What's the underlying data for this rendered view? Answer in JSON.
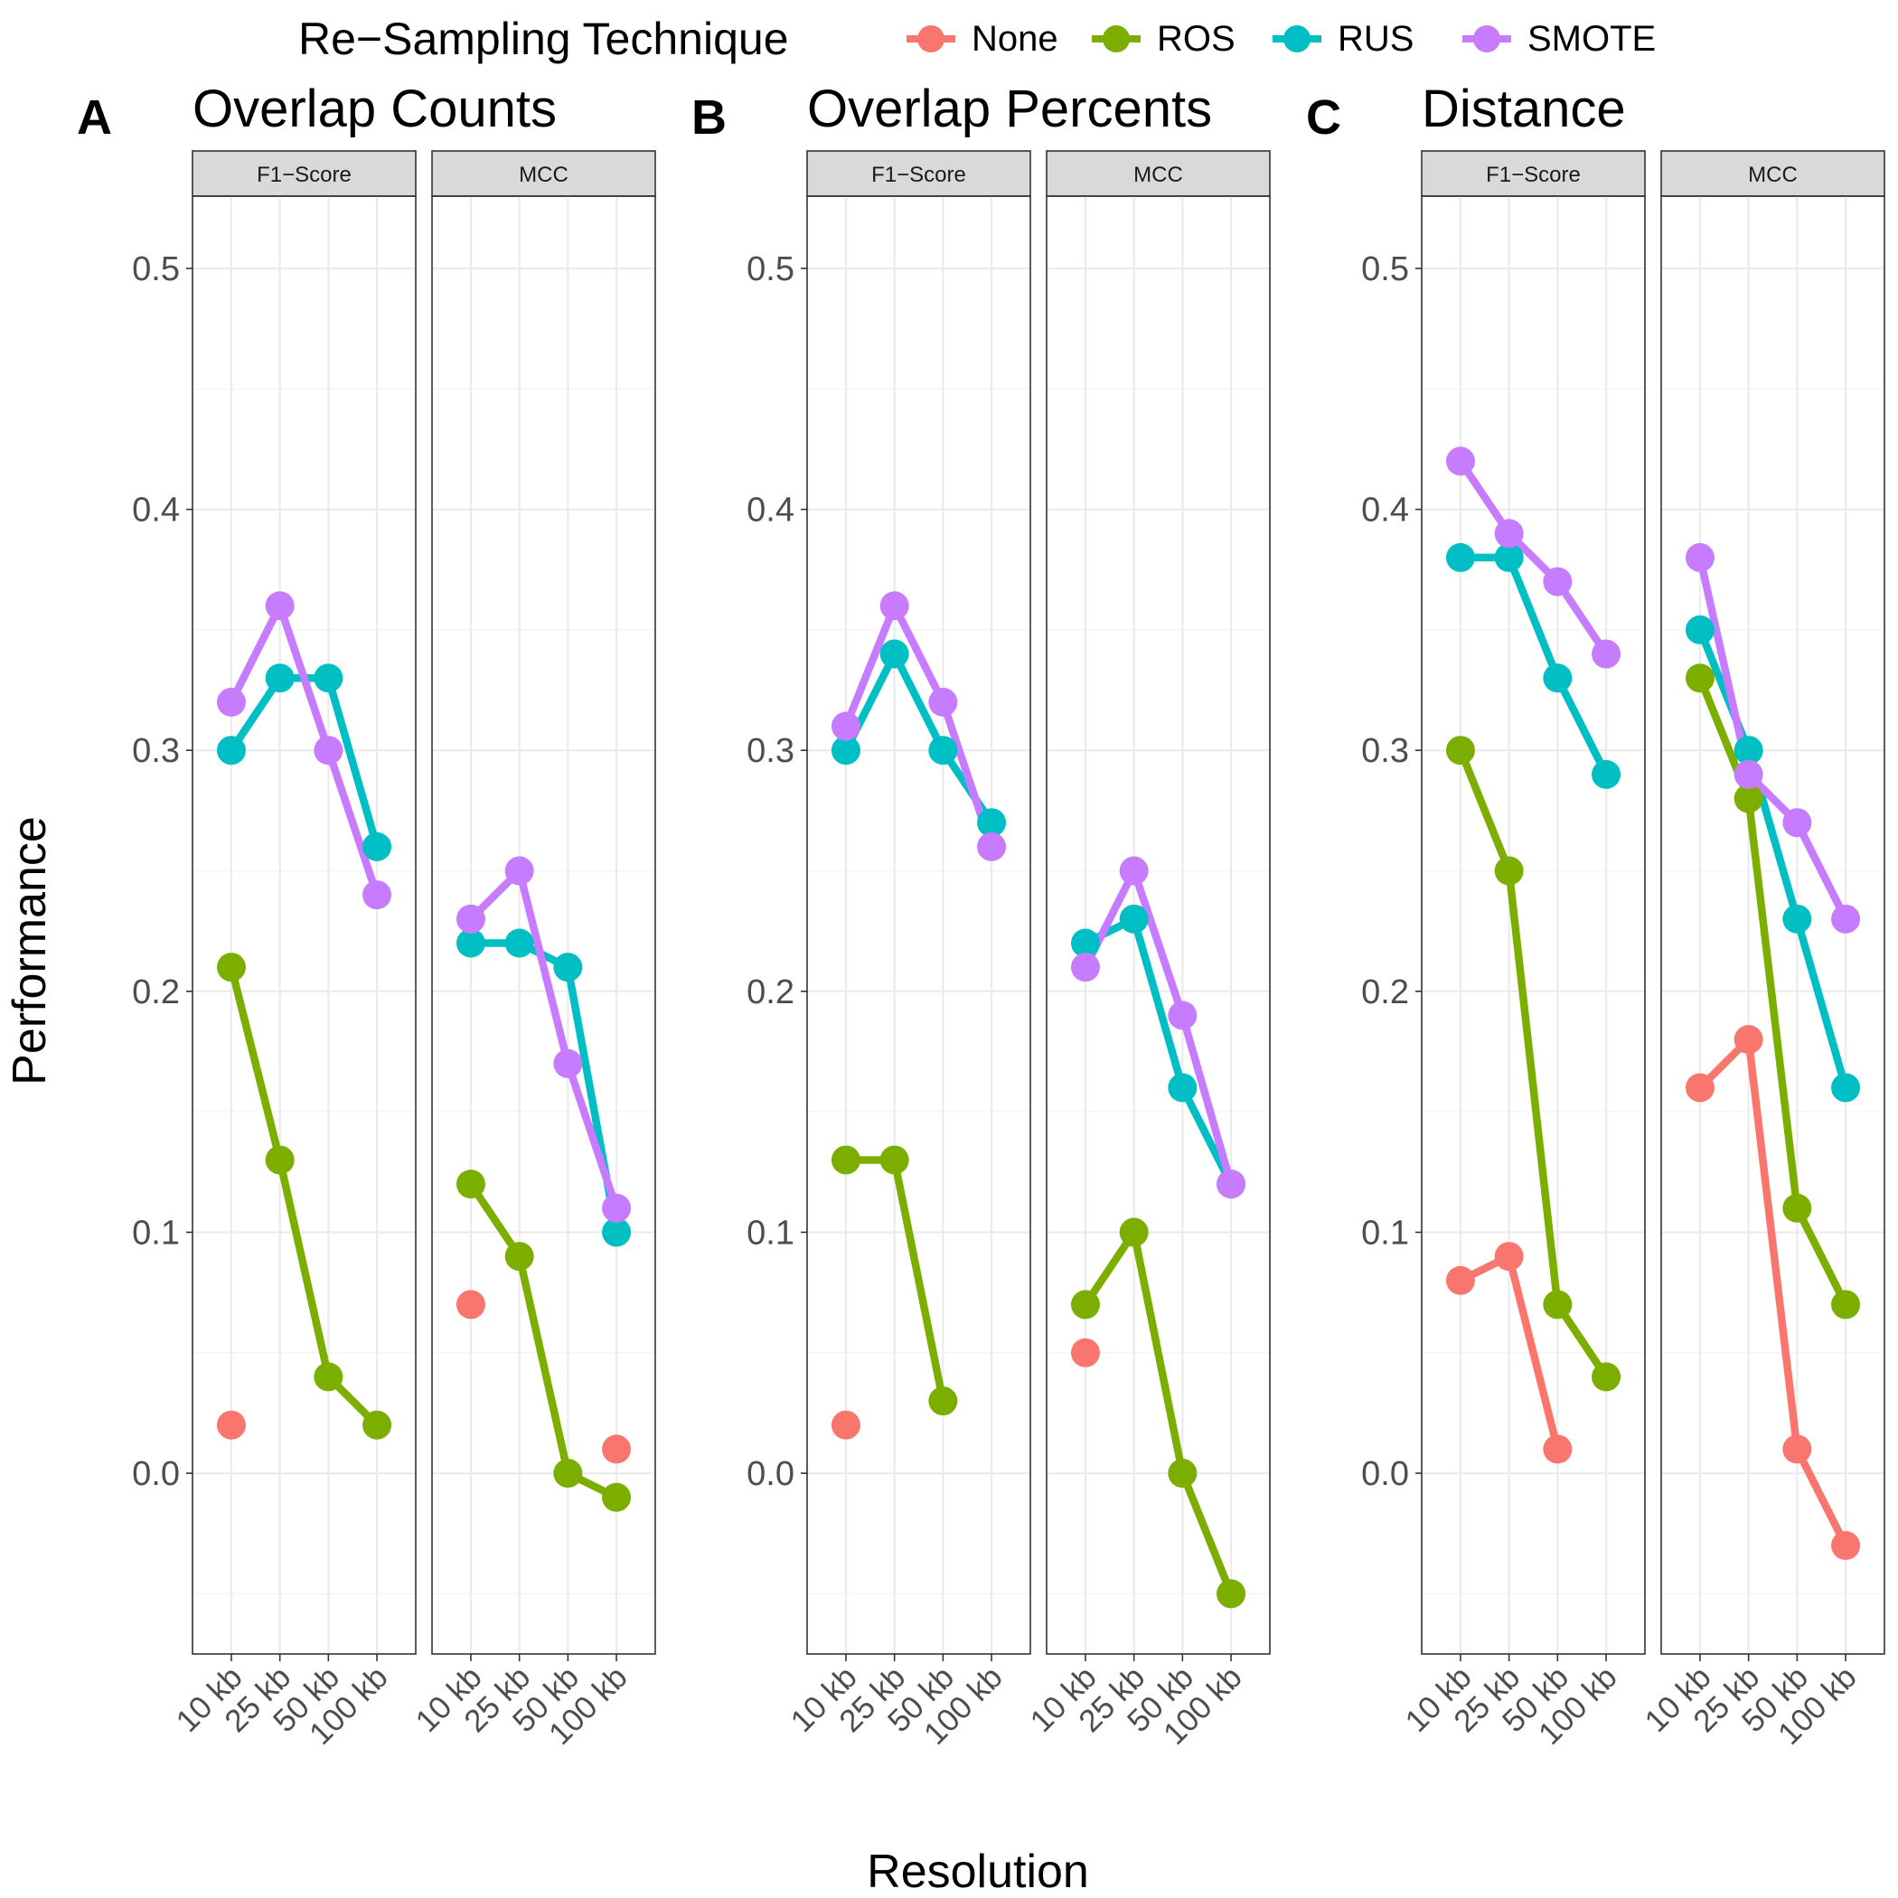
{
  "legend": {
    "title": "Re−Sampling Technique",
    "entries": [
      {
        "name": "None",
        "color": "#F8766D"
      },
      {
        "name": "ROS",
        "color": "#7CAE00"
      },
      {
        "name": "RUS",
        "color": "#00BFC4"
      },
      {
        "name": "SMOTE",
        "color": "#C77CFF"
      }
    ]
  },
  "axes": {
    "xlabel": "Resolution",
    "ylabel": "Performance",
    "x_ticks": [
      "10 kb",
      "25 kb",
      "50 kb",
      "100 kb"
    ],
    "y_ticks": [
      "0.0",
      "0.1",
      "0.2",
      "0.3",
      "0.4",
      "0.5"
    ]
  },
  "chart_data": {
    "type": "line",
    "layout": "faceted",
    "xlabel": "Resolution",
    "ylabel": "Performance",
    "x": [
      "10 kb",
      "25 kb",
      "50 kb",
      "100 kb"
    ],
    "ylim": [
      -0.075,
      0.53
    ],
    "grid": true,
    "legend_position": "top",
    "panels": [
      {
        "letter": "A",
        "title": "Overlap Counts",
        "facets": [
          {
            "label": "F1−Score",
            "series": [
              {
                "name": "None",
                "values": [
                  0.02,
                  null,
                  null,
                  null
                ]
              },
              {
                "name": "ROS",
                "values": [
                  0.21,
                  0.13,
                  0.04,
                  0.02
                ]
              },
              {
                "name": "RUS",
                "values": [
                  0.3,
                  0.33,
                  0.33,
                  0.26
                ]
              },
              {
                "name": "SMOTE",
                "values": [
                  0.32,
                  0.36,
                  0.3,
                  0.24
                ]
              }
            ]
          },
          {
            "label": "MCC",
            "series": [
              {
                "name": "None",
                "values": [
                  0.07,
                  null,
                  null,
                  0.01
                ]
              },
              {
                "name": "ROS",
                "values": [
                  0.12,
                  0.09,
                  0.0,
                  -0.01
                ]
              },
              {
                "name": "RUS",
                "values": [
                  0.22,
                  0.22,
                  0.21,
                  0.1
                ]
              },
              {
                "name": "SMOTE",
                "values": [
                  0.23,
                  0.25,
                  0.17,
                  0.11
                ]
              }
            ]
          }
        ]
      },
      {
        "letter": "B",
        "title": "Overlap Percents",
        "facets": [
          {
            "label": "F1−Score",
            "series": [
              {
                "name": "None",
                "values": [
                  0.02,
                  null,
                  null,
                  null
                ]
              },
              {
                "name": "ROS",
                "values": [
                  0.13,
                  0.13,
                  0.03,
                  null
                ]
              },
              {
                "name": "RUS",
                "values": [
                  0.3,
                  0.34,
                  0.3,
                  0.27
                ]
              },
              {
                "name": "SMOTE",
                "values": [
                  0.31,
                  0.36,
                  0.32,
                  0.26
                ]
              }
            ]
          },
          {
            "label": "MCC",
            "series": [
              {
                "name": "None",
                "values": [
                  0.05,
                  null,
                  null,
                  null
                ]
              },
              {
                "name": "ROS",
                "values": [
                  0.07,
                  0.1,
                  0.0,
                  -0.05
                ]
              },
              {
                "name": "RUS",
                "values": [
                  0.22,
                  0.23,
                  0.16,
                  0.12
                ]
              },
              {
                "name": "SMOTE",
                "values": [
                  0.21,
                  0.25,
                  0.19,
                  0.12
                ]
              }
            ]
          }
        ]
      },
      {
        "letter": "C",
        "title": "Distance",
        "facets": [
          {
            "label": "F1−Score",
            "series": [
              {
                "name": "None",
                "values": [
                  0.08,
                  0.09,
                  0.01,
                  null
                ]
              },
              {
                "name": "ROS",
                "values": [
                  0.3,
                  0.25,
                  0.07,
                  0.04
                ]
              },
              {
                "name": "RUS",
                "values": [
                  0.38,
                  0.38,
                  0.33,
                  0.29
                ]
              },
              {
                "name": "SMOTE",
                "values": [
                  0.42,
                  0.39,
                  0.37,
                  0.34
                ]
              }
            ]
          },
          {
            "label": "MCC",
            "series": [
              {
                "name": "None",
                "values": [
                  0.16,
                  0.18,
                  0.01,
                  -0.03
                ]
              },
              {
                "name": "ROS",
                "values": [
                  0.33,
                  0.28,
                  0.11,
                  0.07
                ]
              },
              {
                "name": "RUS",
                "values": [
                  0.35,
                  0.3,
                  0.23,
                  0.16
                ]
              },
              {
                "name": "SMOTE",
                "values": [
                  0.38,
                  0.29,
                  0.27,
                  0.23
                ]
              }
            ]
          }
        ]
      }
    ]
  }
}
